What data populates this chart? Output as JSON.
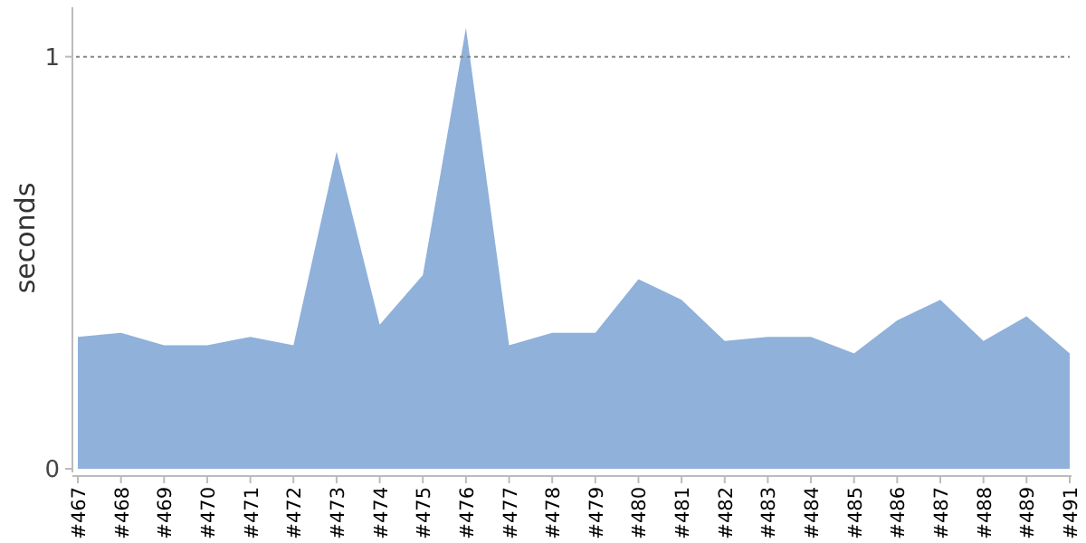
{
  "chart_data": {
    "type": "area",
    "ylabel": "seconds",
    "categories": [
      "#467",
      "#468",
      "#469",
      "#470",
      "#471",
      "#472",
      "#473",
      "#474",
      "#475",
      "#476",
      "#477",
      "#478",
      "#479",
      "#480",
      "#481",
      "#482",
      "#483",
      "#484",
      "#485",
      "#486",
      "#487",
      "#488",
      "#489",
      "#491"
    ],
    "series": [
      {
        "color": "#8fb1da",
        "values": [
          0.32,
          0.33,
          0.3,
          0.3,
          0.32,
          0.3,
          0.77,
          0.35,
          0.47,
          1.07,
          0.3,
          0.33,
          0.33,
          0.46,
          0.41,
          0.31,
          0.32,
          0.32,
          0.28,
          0.36,
          0.41,
          0.31,
          0.37,
          0.28
        ]
      }
    ],
    "ylim": [
      0,
      1.12
    ],
    "yticks": [
      0,
      1
    ],
    "grid": "y"
  }
}
